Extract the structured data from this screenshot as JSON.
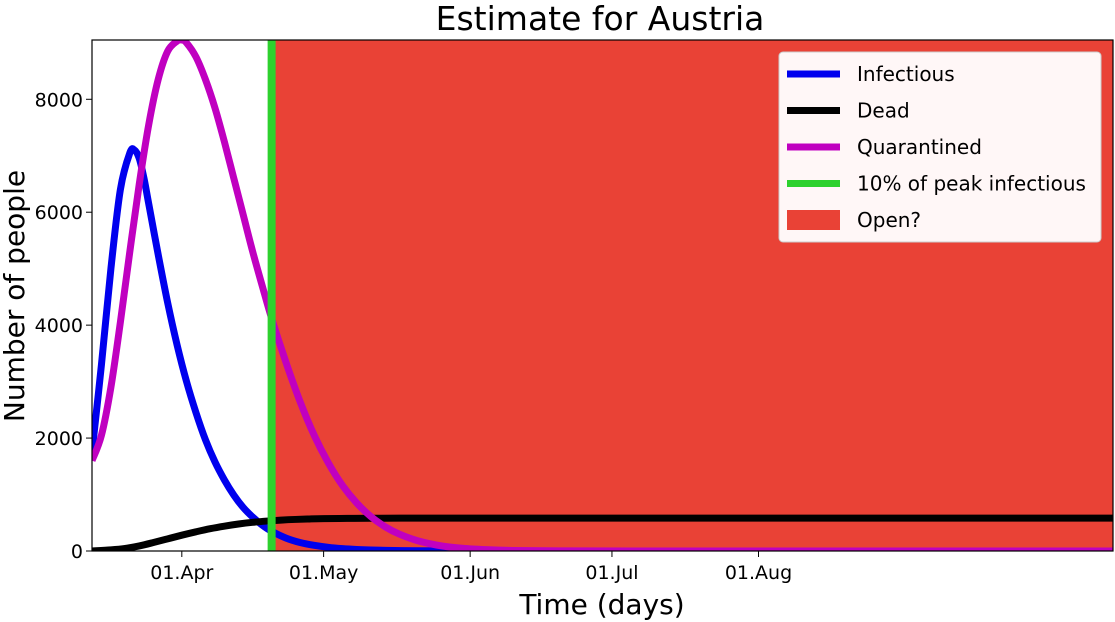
{
  "chart_data": {
    "type": "line",
    "title": "Estimate for Austria",
    "xlabel": "Time (days)",
    "ylabel": "Number of people",
    "x_domain_days": [
      -19,
      197
    ],
    "ylim": [
      0,
      9050
    ],
    "x_ticks": [
      {
        "day": 0,
        "label": "01.Apr"
      },
      {
        "day": 30,
        "label": "01.May"
      },
      {
        "day": 61,
        "label": "01.Jun"
      },
      {
        "day": 91,
        "label": "01.Jul"
      },
      {
        "day": 122,
        "label": "01.Aug"
      }
    ],
    "y_ticks": [
      {
        "value": 0,
        "label": "0"
      },
      {
        "value": 2000,
        "label": "2000"
      },
      {
        "value": 4000,
        "label": "4000"
      },
      {
        "value": 6000,
        "label": "6000"
      },
      {
        "value": 8000,
        "label": "8000"
      }
    ],
    "grid": false,
    "legend_position": "top-right",
    "series": [
      {
        "name": "Infectious",
        "color": "#0000ee",
        "x": [
          -19,
          -17,
          -15,
          -13,
          -11,
          -10,
          -9,
          -8,
          -7,
          -5,
          -3,
          -1,
          1,
          3,
          5,
          7,
          9,
          11,
          13,
          15,
          17,
          19,
          22,
          25,
          28,
          31,
          34,
          37,
          40,
          45,
          50,
          60,
          80,
          120,
          197
        ],
        "y": [
          1750,
          3300,
          5000,
          6400,
          7050,
          7100,
          6950,
          6600,
          6150,
          5250,
          4400,
          3650,
          3000,
          2450,
          1970,
          1580,
          1260,
          990,
          770,
          600,
          460,
          350,
          230,
          150,
          100,
          65,
          42,
          27,
          18,
          9,
          4,
          1,
          0,
          0,
          0
        ]
      },
      {
        "name": "Dead",
        "color": "#000000",
        "x": [
          -19,
          -15,
          -12,
          -9,
          -6,
          -3,
          0,
          3,
          6,
          9,
          12,
          15,
          18,
          21,
          24,
          27,
          30,
          35,
          40,
          50,
          60,
          80,
          120,
          197
        ],
        "y": [
          0,
          20,
          45,
          90,
          150,
          215,
          280,
          340,
          395,
          440,
          478,
          508,
          530,
          547,
          559,
          567,
          573,
          578,
          580,
          582,
          582,
          582,
          582,
          582
        ]
      },
      {
        "name": "Quarantined",
        "color": "#c000c0",
        "x": [
          -19,
          -17,
          -15,
          -13,
          -11,
          -9,
          -7,
          -5,
          -3,
          -1,
          0,
          1,
          3,
          5,
          7,
          9,
          11,
          13,
          15,
          17,
          19,
          22,
          25,
          28,
          31,
          34,
          37,
          40,
          43,
          46,
          50,
          55,
          60,
          65,
          70,
          80,
          100,
          150,
          197
        ],
        "y": [
          1600,
          2050,
          2900,
          4050,
          5300,
          6500,
          7550,
          8350,
          8850,
          9030,
          9050,
          9000,
          8750,
          8350,
          7850,
          7250,
          6600,
          5950,
          5300,
          4700,
          4120,
          3350,
          2650,
          2050,
          1560,
          1160,
          850,
          610,
          430,
          300,
          180,
          90,
          45,
          22,
          10,
          2,
          0,
          0,
          0
        ]
      }
    ],
    "vline": {
      "name": "10% of peak infectious",
      "day": 19,
      "color": "#2ed12e"
    },
    "region": {
      "name": "Open?",
      "from_day": 19,
      "to_day": 197,
      "color": "#e94236"
    }
  }
}
